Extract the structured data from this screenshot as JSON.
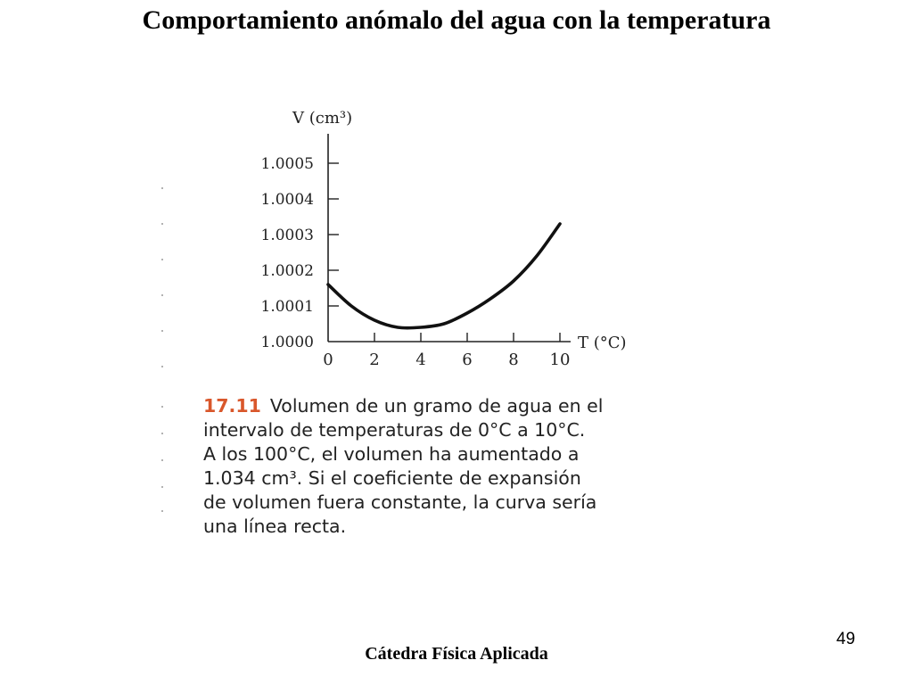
{
  "slide": {
    "title": "Comportamiento anómalo del agua con la temperatura",
    "footer": "Cátedra Física Aplicada",
    "page_number": "49"
  },
  "figure": {
    "number": "17.11",
    "caption_lines": [
      "Volumen de un gramo de agua en el",
      "intervalo de temperaturas de 0°C a 10°C.",
      "A los 100°C, el volumen ha aumentado a",
      "1.034 cm³. Si el coeficiente de expansión",
      "de volumen fuera constante, la curva sería",
      "una línea recta."
    ],
    "caption_color": "#d9572b"
  },
  "chart_data": {
    "type": "line",
    "xlabel": "T (°C)",
    "ylabel": "V (cm³)",
    "xlim": [
      0,
      10
    ],
    "ylim": [
      1.0,
      1.0005
    ],
    "x_ticks": [
      "0",
      "2",
      "4",
      "6",
      "8",
      "10"
    ],
    "y_ticks": [
      "1.0000",
      "1.0001",
      "1.0002",
      "1.0003",
      "1.0004",
      "1.0005"
    ],
    "grid": false,
    "series": [
      {
        "x": [
          0,
          1,
          2,
          3,
          4,
          5,
          6,
          7,
          8,
          9,
          10
        ],
        "values": [
          1.00016,
          1.0001,
          1.00006,
          1.00004,
          1.00004,
          1.00005,
          1.00008,
          1.00012,
          1.00017,
          1.00024,
          1.00033
        ]
      }
    ]
  }
}
